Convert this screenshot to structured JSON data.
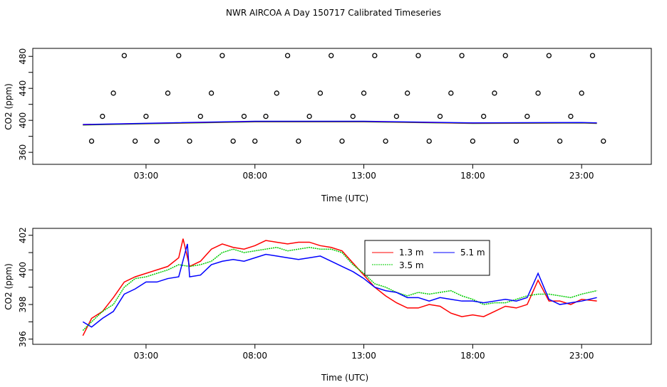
{
  "title": "NWR AIRCOA A  Day 150717  Calibrated Timeseries",
  "chart_data": [
    {
      "type": "scatter+line",
      "name": "top",
      "xlabel": "Time (UTC)",
      "ylabel": "CO2 (ppm)",
      "xlim": [
        -2.2,
        26.2
      ],
      "ylim": [
        345,
        490
      ],
      "xticks": [
        3,
        8,
        13,
        18,
        23
      ],
      "xtick_labels": [
        "03:00",
        "08:00",
        "13:00",
        "18:00",
        "23:00"
      ],
      "yticks": [
        360,
        380,
        400,
        420,
        440,
        460,
        480
      ],
      "ytick_labels": [
        "360",
        "",
        "400",
        "",
        "440",
        "",
        "480"
      ],
      "yticklabels_shown": [
        "360",
        "400",
        "440",
        "480"
      ],
      "calibration_points": {
        "hours": [
          0.5,
          1.0,
          1.5,
          2.0,
          2.5,
          3.0,
          3.5,
          4.0,
          4.5,
          5.0,
          5.5,
          6.0,
          6.5,
          7.0,
          7.5,
          8.0,
          8.5,
          9.0,
          9.5,
          10.0,
          10.5,
          11.0,
          11.5,
          12.0,
          12.5,
          13.0,
          13.5,
          14.0,
          14.5,
          15.0,
          15.5,
          16.0,
          16.5,
          17.0,
          17.5,
          18.0,
          18.5,
          19.0,
          19.5,
          20.0,
          20.5,
          21.0,
          21.5,
          22.0,
          22.5,
          23.0,
          23.5,
          24.0
        ],
        "values": [
          374,
          405,
          434,
          481,
          374,
          405,
          374,
          434,
          481,
          374,
          405,
          434,
          481,
          374,
          405,
          374,
          405,
          434,
          481,
          374,
          405,
          434,
          481,
          374,
          405,
          434,
          481,
          374,
          405,
          434,
          481,
          374,
          405,
          434,
          481,
          374,
          405,
          434,
          481,
          374,
          405,
          434,
          481,
          374,
          405,
          434,
          481,
          374
        ]
      },
      "series": [
        {
          "name": "1.3 m",
          "color": "#ff0000"
        },
        {
          "name": "3.5 m",
          "color": "#00cc00"
        },
        {
          "name": "5.1 m",
          "color": "#0000ff"
        }
      ],
      "baseline": {
        "hours": [
          0.1,
          3,
          8,
          13,
          18,
          23,
          23.7
        ],
        "values": [
          394.5,
          396,
          398.5,
          398.5,
          396.5,
          397,
          396.5
        ]
      }
    },
    {
      "type": "line",
      "name": "bottom",
      "xlabel": "Time (UTC)",
      "ylabel": "CO2 (ppm)",
      "xlim": [
        -2.2,
        26.2
      ],
      "ylim": [
        395.7,
        402.4
      ],
      "xticks": [
        3,
        8,
        13,
        18,
        23
      ],
      "xtick_labels": [
        "03:00",
        "08:00",
        "13:00",
        "18:00",
        "23:00"
      ],
      "yticks": [
        396,
        397,
        398,
        399,
        400,
        401,
        402
      ],
      "ytick_labels": [
        "396",
        "",
        "398",
        "",
        "400",
        "",
        "402"
      ],
      "legend": {
        "position": "top-center",
        "entries": [
          "1.3 m",
          "5.1 m",
          "3.5 m"
        ]
      },
      "series": [
        {
          "name": "1.3 m",
          "color": "#ff0000",
          "hours": [
            0.1,
            0.5,
            1.0,
            1.5,
            2.0,
            2.5,
            3.0,
            3.5,
            4.0,
            4.5,
            4.7,
            5.0,
            5.5,
            6.0,
            6.5,
            7.0,
            7.5,
            8.0,
            8.5,
            9.0,
            9.5,
            10.0,
            10.5,
            11.0,
            11.5,
            12.0,
            12.5,
            13.0,
            13.5,
            14.0,
            14.5,
            15.0,
            15.5,
            16.0,
            16.5,
            17.0,
            17.5,
            18.0,
            18.5,
            19.0,
            19.5,
            20.0,
            20.5,
            21.0,
            21.5,
            22.0,
            22.5,
            23.0,
            23.7
          ],
          "values": [
            396.2,
            397.2,
            397.6,
            398.4,
            399.3,
            399.6,
            399.8,
            400.0,
            400.2,
            400.7,
            401.8,
            400.2,
            400.5,
            401.2,
            401.5,
            401.3,
            401.2,
            401.4,
            401.7,
            401.6,
            401.5,
            401.6,
            401.6,
            401.4,
            401.3,
            401.1,
            400.4,
            399.7,
            399.0,
            398.5,
            398.1,
            397.8,
            397.8,
            398.0,
            397.9,
            397.5,
            397.3,
            397.4,
            397.3,
            397.6,
            397.9,
            397.8,
            398.0,
            399.4,
            398.2,
            398.2,
            398.0,
            398.3,
            398.2
          ]
        },
        {
          "name": "3.5 m",
          "color": "#00cc00",
          "hours": [
            0.1,
            0.5,
            1.0,
            1.5,
            2.0,
            2.5,
            3.0,
            3.5,
            4.0,
            4.5,
            5.0,
            5.5,
            6.0,
            6.5,
            7.0,
            7.5,
            8.0,
            8.5,
            9.0,
            9.5,
            10.0,
            10.5,
            11.0,
            11.5,
            12.0,
            12.5,
            13.0,
            13.5,
            14.0,
            14.5,
            15.0,
            15.5,
            16.0,
            16.5,
            17.0,
            17.5,
            18.0,
            18.5,
            19.0,
            19.5,
            20.0,
            20.5,
            21.0,
            21.5,
            22.0,
            22.5,
            23.0,
            23.7
          ],
          "values": [
            396.5,
            397.0,
            397.6,
            398.0,
            399.0,
            399.5,
            399.6,
            399.8,
            400.0,
            400.3,
            400.2,
            400.3,
            400.5,
            401.0,
            401.2,
            401.0,
            401.1,
            401.2,
            401.3,
            401.1,
            401.2,
            401.3,
            401.2,
            401.2,
            401.0,
            400.3,
            399.8,
            399.2,
            399.0,
            398.7,
            398.5,
            398.7,
            398.6,
            398.7,
            398.8,
            398.5,
            398.3,
            398.0,
            398.1,
            398.1,
            398.3,
            398.5,
            398.6,
            398.6,
            398.5,
            398.4,
            398.6,
            398.8
          ]
        },
        {
          "name": "5.1 m",
          "color": "#0000ff",
          "hours": [
            0.1,
            0.5,
            1.0,
            1.5,
            2.0,
            2.5,
            3.0,
            3.5,
            4.0,
            4.5,
            4.9,
            5.0,
            5.5,
            6.0,
            6.5,
            7.0,
            7.5,
            8.0,
            8.5,
            9.0,
            9.5,
            10.0,
            10.5,
            11.0,
            11.5,
            12.0,
            12.5,
            13.0,
            13.5,
            14.0,
            14.5,
            15.0,
            15.5,
            16.0,
            16.5,
            17.0,
            17.5,
            18.0,
            18.5,
            19.0,
            19.5,
            20.0,
            20.5,
            21.0,
            21.5,
            22.0,
            22.5,
            23.0,
            23.7
          ],
          "values": [
            397.0,
            396.7,
            397.2,
            397.6,
            398.6,
            398.9,
            399.3,
            399.3,
            399.5,
            399.6,
            401.5,
            399.6,
            399.7,
            400.3,
            400.5,
            400.6,
            400.5,
            400.7,
            400.9,
            400.8,
            400.7,
            400.6,
            400.7,
            400.8,
            400.5,
            400.2,
            399.9,
            399.5,
            399.0,
            398.8,
            398.7,
            398.4,
            398.4,
            398.2,
            398.4,
            398.3,
            398.2,
            398.2,
            398.1,
            398.2,
            398.3,
            398.2,
            398.4,
            399.8,
            398.3,
            398.0,
            398.1,
            398.2,
            398.4
          ]
        }
      ]
    }
  ]
}
